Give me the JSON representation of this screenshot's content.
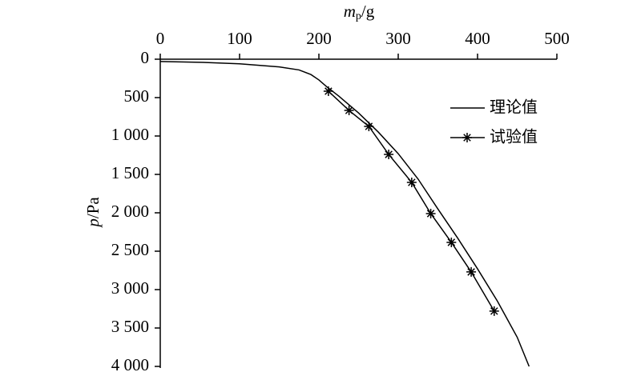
{
  "chart_data": {
    "type": "line",
    "xlabel_parts": [
      "m",
      "p",
      "/g"
    ],
    "ylabel_parts": [
      "p",
      "/Pa"
    ],
    "xlim": [
      0,
      500
    ],
    "xticks": [
      0,
      100,
      200,
      300,
      400,
      500
    ],
    "ylim": [
      0,
      4000
    ],
    "yticks": [
      0,
      500,
      {
        "value": 1000,
        "label": "1 000"
      },
      {
        "value": 1500,
        "label": "1 500"
      },
      {
        "value": 2000,
        "label": "2 000"
      },
      {
        "value": 2500,
        "label": "2 500"
      },
      {
        "value": 3000,
        "label": "3 000"
      },
      {
        "value": 3500,
        "label": "3 500"
      },
      {
        "value": 4000,
        "label": "4 000"
      }
    ],
    "y_inverted": true,
    "legend": "upper right",
    "series": [
      {
        "name": "理论值",
        "color": "#000000",
        "marker": "none",
        "x": [
          0,
          50,
          100,
          150,
          175,
          190,
          200,
          210,
          225,
          250,
          275,
          300,
          325,
          350,
          375,
          400,
          425,
          450,
          465
        ],
        "values": [
          30,
          40,
          60,
          100,
          140,
          200,
          270,
          360,
          480,
          700,
          950,
          1230,
          1560,
          1950,
          2330,
          2730,
          3150,
          3620,
          4000
        ]
      },
      {
        "name": "试验值",
        "color": "#000000",
        "marker": "asterisk",
        "x": [
          212,
          238,
          263,
          288,
          317,
          341,
          367,
          392,
          421
        ],
        "values": [
          417,
          667,
          875,
          1240,
          1604,
          2010,
          2385,
          2770,
          3280
        ]
      }
    ]
  }
}
